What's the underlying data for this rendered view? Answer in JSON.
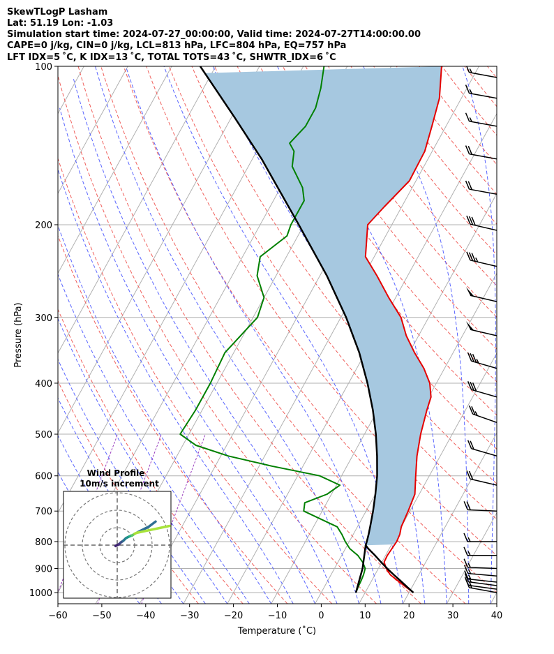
{
  "header": {
    "line1": "SkewTLogP Lasham",
    "line2": "Lat: 51.19   Lon: -1.03",
    "line3": "Simulation start time: 2024-07-27_00:00:00, Valid time: 2024-07-27T14:00:00.00",
    "line4": "CAPE=0 j/kg, CIN=0 j/kg, LCL=813 hPa, LFC=804 hPa, EQ=757 hPa",
    "line5": "LFT IDX=5 ˚C, K IDX=13 ˚C, TOTAL TOTS=43 ˚C, SHWTR_IDX=6 ˚C"
  },
  "chart_data": {
    "type": "line",
    "xlabel": "Temperature (˚C)",
    "ylabel": "Pressure (hPa)",
    "xlim": [
      -60,
      40
    ],
    "ylim": [
      1050,
      100
    ],
    "y_scale": "log",
    "grid": true,
    "x_ticks": [
      -60,
      -50,
      -40,
      -30,
      -20,
      -10,
      0,
      10,
      20,
      30,
      40
    ],
    "y_ticks": [
      1000,
      900,
      800,
      700,
      600,
      500,
      400,
      300,
      200,
      100
    ],
    "series": [
      {
        "color": "#e50000",
        "points": [
          [
            1000,
            21
          ],
          [
            975,
            18.5
          ],
          [
            950,
            16
          ],
          [
            925,
            13.5
          ],
          [
            900,
            11.8
          ],
          [
            875,
            10.5
          ],
          [
            850,
            10.4
          ],
          [
            825,
            10.6
          ],
          [
            800,
            10.8
          ],
          [
            775,
            10.6
          ],
          [
            750,
            10
          ],
          [
            700,
            9.6
          ],
          [
            650,
            9.0
          ],
          [
            600,
            6.9
          ],
          [
            550,
            4.7
          ],
          [
            500,
            2.8
          ],
          [
            450,
            1.2
          ],
          [
            425,
            0.5
          ],
          [
            400,
            -1.5
          ],
          [
            375,
            -4.7
          ],
          [
            350,
            -8.8
          ],
          [
            325,
            -12.8
          ],
          [
            300,
            -16.3
          ],
          [
            275,
            -21.6
          ],
          [
            250,
            -27.0
          ],
          [
            230,
            -32.0
          ],
          [
            200,
            -35.5
          ],
          [
            185,
            -34.0
          ],
          [
            165,
            -31.5
          ],
          [
            145,
            -31.7
          ],
          [
            130,
            -33.2
          ],
          [
            115,
            -35.0
          ],
          [
            100,
            -38.5
          ]
        ]
      },
      {
        "color": "#008000",
        "points": [
          [
            1000,
            7.9
          ],
          [
            975,
            7.7
          ],
          [
            950,
            7.6
          ],
          [
            925,
            7.4
          ],
          [
            900,
            7.0
          ],
          [
            875,
            5.6
          ],
          [
            850,
            3.7
          ],
          [
            825,
            1.0
          ],
          [
            800,
            -0.9
          ],
          [
            775,
            -2.6
          ],
          [
            750,
            -4.6
          ],
          [
            700,
            -14.2
          ],
          [
            675,
            -15.0
          ],
          [
            650,
            -11.0
          ],
          [
            625,
            -9.2
          ],
          [
            600,
            -15.0
          ],
          [
            575,
            -27.1
          ],
          [
            550,
            -38.3
          ],
          [
            525,
            -47.0
          ],
          [
            500,
            -52.0
          ],
          [
            450,
            -51.5
          ],
          [
            400,
            -51.5
          ],
          [
            350,
            -52.0
          ],
          [
            300,
            -49.0
          ],
          [
            275,
            -50.0
          ],
          [
            250,
            -54.3
          ],
          [
            230,
            -56.0
          ],
          [
            210,
            -52.5
          ],
          [
            200,
            -53.0
          ],
          [
            180,
            -53.0
          ],
          [
            170,
            -55.0
          ],
          [
            155,
            -60.0
          ],
          [
            145,
            -61.5
          ],
          [
            140,
            -63.5
          ],
          [
            130,
            -62.0
          ],
          [
            120,
            -62.0
          ],
          [
            110,
            -63.3
          ],
          [
            100,
            -65.3
          ]
        ]
      },
      {
        "color": "#000000",
        "points": [
          [
            1000,
            21.0
          ],
          [
            975,
            18.8
          ],
          [
            950,
            16.6
          ],
          [
            925,
            14.3
          ],
          [
            900,
            12.0
          ],
          [
            875,
            9.8
          ],
          [
            850,
            7.6
          ],
          [
            825,
            5.2
          ],
          [
            813,
            4.2
          ],
          [
            800,
            4.0
          ],
          [
            775,
            3.5
          ],
          [
            750,
            2.9
          ],
          [
            700,
            1.6
          ],
          [
            650,
            0.0
          ],
          [
            600,
            -1.9
          ],
          [
            550,
            -4.4
          ],
          [
            500,
            -7.4
          ],
          [
            450,
            -11.1
          ],
          [
            400,
            -15.7
          ],
          [
            350,
            -21.4
          ],
          [
            300,
            -28.8
          ],
          [
            250,
            -38.4
          ],
          [
            200,
            -51.2
          ],
          [
            150,
            -67.9
          ],
          [
            125,
            -79.3
          ],
          [
            100,
            -93.5
          ]
        ]
      },
      {
        "color": "#000000",
        "points": [
          [
            1000,
            7.9
          ],
          [
            900,
            6.4
          ],
          [
            813,
            4.2
          ]
        ]
      }
    ],
    "wind_barbs": [
      {
        "p": 1000,
        "spd": 15,
        "dir": 250
      },
      {
        "p": 985,
        "spd": 15,
        "dir": 255
      },
      {
        "p": 970,
        "spd": 15,
        "dir": 255
      },
      {
        "p": 955,
        "spd": 15,
        "dir": 258
      },
      {
        "p": 930,
        "spd": 15,
        "dir": 260
      },
      {
        "p": 900,
        "spd": 15,
        "dir": 265
      },
      {
        "p": 850,
        "spd": 15,
        "dir": 270
      },
      {
        "p": 800,
        "spd": 15,
        "dir": 270
      },
      {
        "p": 700,
        "spd": 20,
        "dir": 265
      },
      {
        "p": 625,
        "spd": 20,
        "dir": 245
      },
      {
        "p": 550,
        "spd": 20,
        "dir": 240
      },
      {
        "p": 475,
        "spd": 25,
        "dir": 235
      },
      {
        "p": 425,
        "spd": 30,
        "dir": 240
      },
      {
        "p": 375,
        "spd": 35,
        "dir": 240
      },
      {
        "p": 325,
        "spd": 50,
        "dir": 245
      },
      {
        "p": 280,
        "spd": 50,
        "dir": 245
      },
      {
        "p": 240,
        "spd": 35,
        "dir": 245
      },
      {
        "p": 205,
        "spd": 30,
        "dir": 245
      },
      {
        "p": 175,
        "spd": 20,
        "dir": 250
      },
      {
        "p": 150,
        "spd": 20,
        "dir": 250
      },
      {
        "p": 130,
        "spd": 15,
        "dir": 250
      },
      {
        "p": 115,
        "spd": 15,
        "dir": 250
      },
      {
        "p": 105,
        "spd": 15,
        "dir": 250
      }
    ],
    "hodograph": {
      "title": "Wind Profile",
      "subtitle": "10m/s increment",
      "points": [
        [
          -2,
          -1
        ],
        [
          2,
          1
        ],
        [
          4,
          3
        ],
        [
          7,
          5
        ],
        [
          10,
          8
        ],
        [
          14,
          10
        ],
        [
          17,
          11
        ],
        [
          20,
          13
        ],
        [
          24,
          15
        ],
        [
          28,
          17
        ],
        [
          32,
          19
        ],
        [
          36,
          21
        ],
        [
          40,
          24
        ],
        [
          44,
          27
        ]
      ]
    }
  }
}
